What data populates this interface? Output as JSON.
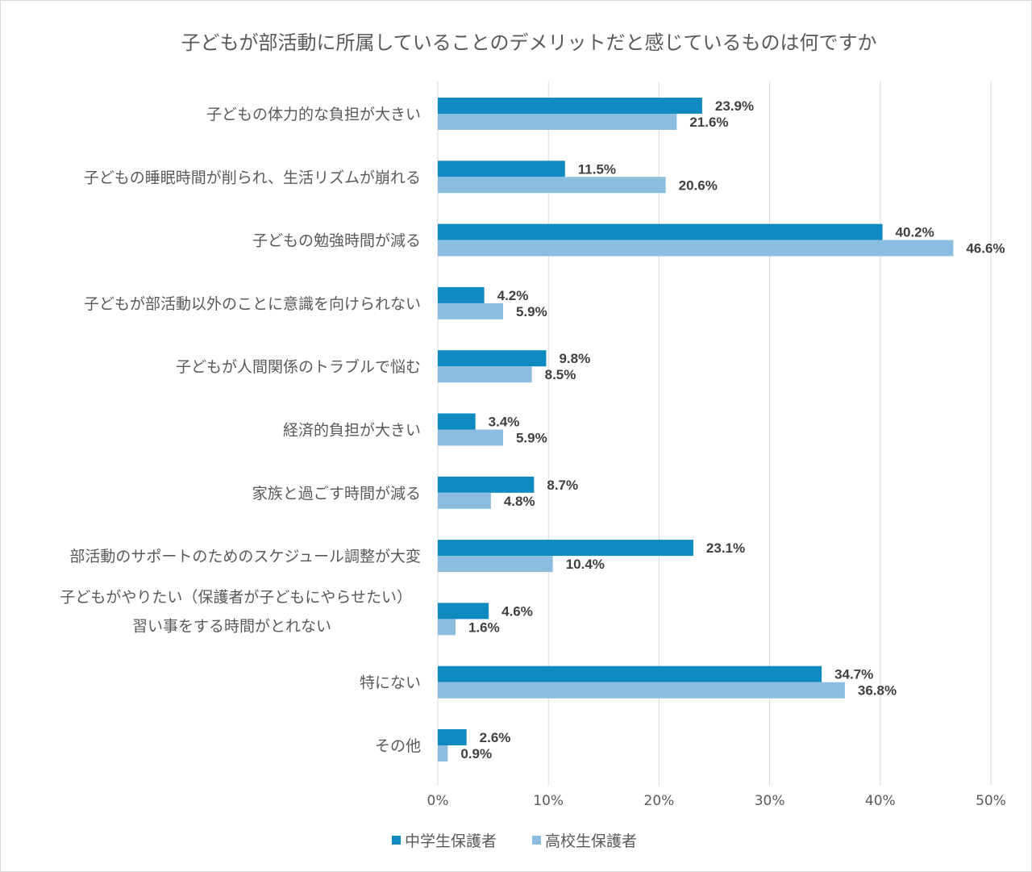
{
  "chart_data": {
    "type": "bar",
    "orientation": "horizontal",
    "title": "子どもが部活動に所属していることのデメリットだと感じているものは何ですか",
    "xlabel": "",
    "ylabel": "",
    "xlim": [
      0,
      50
    ],
    "x_ticks": [
      "0%",
      "10%",
      "20%",
      "30%",
      "40%",
      "50%"
    ],
    "grid": true,
    "legend_position": "bottom",
    "categories": [
      [
        "子どもの体力的な負担が大きい"
      ],
      [
        "子どもの睡眠時間が削られ、生活リズムが崩れる"
      ],
      [
        "子どもの勉強時間が減る"
      ],
      [
        "子どもが部活動以外のことに意識を向けられない"
      ],
      [
        "子どもが人間関係のトラブルで悩む"
      ],
      [
        "経済的負担が大きい"
      ],
      [
        "家族と過ごす時間が減る"
      ],
      [
        "部活動のサポートのためのスケジュール調整が大変"
      ],
      [
        "子どもがやりたい（保護者が子どもにやらせたい）",
        "習い事をする時間がとれない"
      ],
      [
        "特にない"
      ],
      [
        "その他"
      ]
    ],
    "series": [
      {
        "name": "中学生保護者",
        "color": "#0e8ac0",
        "values": [
          23.9,
          11.5,
          40.2,
          4.2,
          9.8,
          3.4,
          8.7,
          23.1,
          4.6,
          34.7,
          2.6
        ],
        "labels": [
          "23.9%",
          "11.5%",
          "40.2%",
          "4.2%",
          "9.8%",
          "3.4%",
          "8.7%",
          "23.1%",
          "4.6%",
          "34.7%",
          "2.6%"
        ]
      },
      {
        "name": "高校生保護者",
        "color": "#8bbde0",
        "values": [
          21.6,
          20.6,
          46.6,
          5.9,
          8.5,
          5.9,
          4.8,
          10.4,
          1.6,
          36.8,
          0.9
        ],
        "labels": [
          "21.6%",
          "20.6%",
          "46.6%",
          "5.9%",
          "8.5%",
          "5.9%",
          "4.8%",
          "10.4%",
          "1.6%",
          "36.8%",
          "0.9%"
        ]
      }
    ]
  }
}
